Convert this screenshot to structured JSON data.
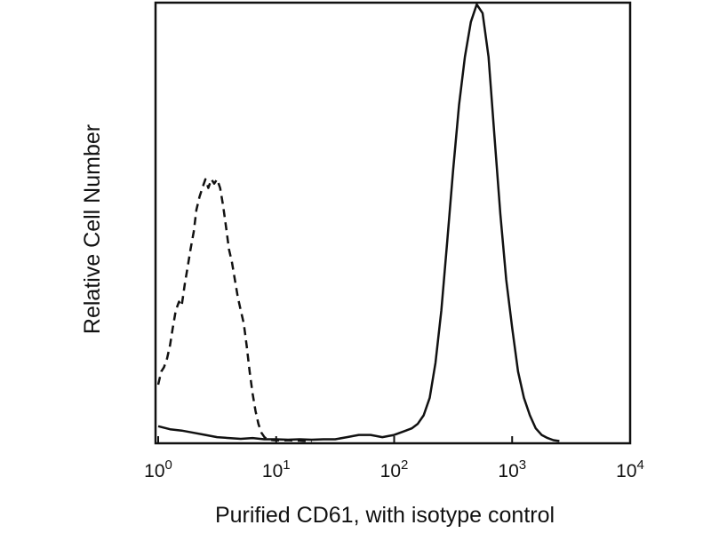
{
  "chart_data": {
    "type": "line",
    "title": "",
    "xlabel": "Purified CD61, with isotype control",
    "ylabel": "Relative Cell Number",
    "x_scale": "log",
    "xlim": [
      1,
      10000
    ],
    "ylim": [
      0,
      100
    ],
    "y_ticks_shown": false,
    "grid": false,
    "legend": "none",
    "x_ticks": [
      {
        "base": "10",
        "exp": "0",
        "value": 1
      },
      {
        "base": "10",
        "exp": "1",
        "value": 10
      },
      {
        "base": "10",
        "exp": "2",
        "value": 100
      },
      {
        "base": "10",
        "exp": "3",
        "value": 1000
      },
      {
        "base": "10",
        "exp": "4",
        "value": 10000
      }
    ],
    "series": [
      {
        "style": "dashed",
        "color": "#111111",
        "x": [
          1.0,
          1.06,
          1.12,
          1.19,
          1.26,
          1.33,
          1.41,
          1.5,
          1.58,
          1.68,
          1.78,
          1.88,
          2.0,
          2.11,
          2.24,
          2.37,
          2.51,
          2.66,
          2.82,
          2.98,
          3.16,
          3.35,
          3.55,
          3.76,
          3.98,
          4.22,
          4.47,
          4.73,
          5.01,
          5.31,
          5.62,
          5.96,
          6.31,
          6.68,
          7.08,
          7.5,
          7.94,
          8.41,
          8.91,
          9.44,
          10.0,
          11.2,
          12.6,
          14.1,
          15.8,
          17.8,
          20.0
        ],
        "y": [
          13,
          16,
          17,
          19,
          22,
          26,
          30,
          32,
          31,
          36,
          40,
          44,
          48,
          53,
          56,
          58,
          60,
          58,
          60,
          59,
          60,
          58,
          54,
          49,
          44,
          41,
          37,
          33,
          30,
          27,
          22,
          16,
          11,
          7,
          4,
          2,
          1,
          0.5,
          0.4,
          0.3,
          0.3,
          0.2,
          0.3,
          0.2,
          0.2,
          0.1,
          0.1
        ]
      },
      {
        "style": "solid",
        "color": "#111111",
        "x": [
          1.0,
          1.26,
          1.58,
          2.0,
          2.51,
          3.16,
          3.98,
          5.01,
          6.31,
          7.94,
          10.0,
          12.6,
          15.8,
          20.0,
          25.1,
          31.6,
          39.8,
          50.1,
          63.1,
          79.4,
          100,
          112,
          126,
          141,
          158,
          178,
          200,
          224,
          251,
          282,
          316,
          355,
          398,
          447,
          501,
          562,
          631,
          708,
          794,
          891,
          1000,
          1122,
          1259,
          1413,
          1585,
          1778,
          1995,
          2239,
          2512
        ],
        "y": [
          3.5,
          2.8,
          2.5,
          2.0,
          1.5,
          1.0,
          0.8,
          0.6,
          0.8,
          0.5,
          0.5,
          0.4,
          0.5,
          0.4,
          0.5,
          0.5,
          1.0,
          1.5,
          1.5,
          1.0,
          1.5,
          2.0,
          2.5,
          3.0,
          4.0,
          6.0,
          10,
          18,
          30,
          46,
          62,
          77,
          88,
          96,
          100,
          98,
          88,
          70,
          52,
          37,
          26,
          16,
          10,
          6,
          3,
          1.5,
          0.8,
          0.3,
          0.1
        ]
      }
    ]
  }
}
